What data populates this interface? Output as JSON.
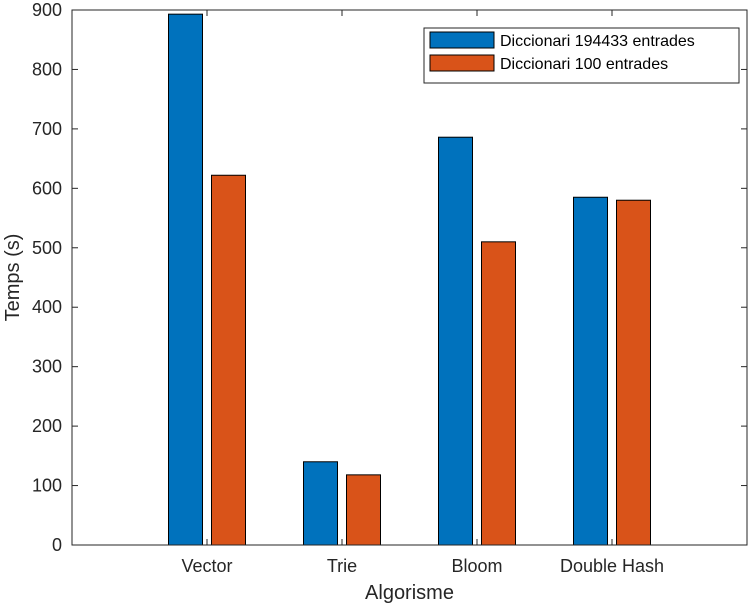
{
  "chart_data": {
    "type": "bar",
    "title": "",
    "xlabel": "Algorisme",
    "ylabel": "Temps (s)",
    "categories": [
      "Vector",
      "Trie",
      "Bloom",
      "Double Hash"
    ],
    "series": [
      {
        "name": "Diccionari 194433 entrades",
        "color": "#0072BD",
        "values": [
          893,
          140,
          686,
          585
        ]
      },
      {
        "name": "Diccionari 100 entrades",
        "color": "#D95319",
        "values": [
          622,
          118,
          510,
          580
        ]
      }
    ],
    "ylim": [
      0,
      900
    ],
    "yticks": [
      0,
      100,
      200,
      300,
      400,
      500,
      600,
      700,
      800,
      900
    ],
    "grid": false,
    "legend_position": "top-right"
  }
}
